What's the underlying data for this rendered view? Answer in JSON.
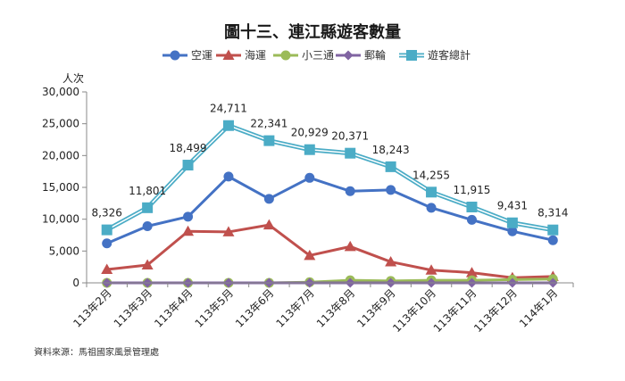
{
  "chart_data": {
    "type": "line",
    "title": "圖十三、連江縣遊客數量",
    "ylabel": "人次",
    "ylim": [
      0,
      30000
    ],
    "yticks": [
      0,
      5000,
      10000,
      15000,
      20000,
      25000,
      30000
    ],
    "ytick_labels": [
      "0",
      "5,000",
      "10,000",
      "15,000",
      "20,000",
      "25,000",
      "30,000"
    ],
    "grid": false,
    "legend_position": "top-center",
    "categories": [
      "113年2月",
      "113年3月",
      "113年4月",
      "113年5月",
      "113年6月",
      "113年7月",
      "113年8月",
      "113年9月",
      "113年10月",
      "113年11月",
      "113年12月",
      "114年1月"
    ],
    "series": [
      {
        "name": "空運",
        "color": "#4472C4",
        "marker": "circle",
        "values": [
          6200,
          8900,
          10400,
          16700,
          13200,
          16500,
          14400,
          14600,
          11800,
          9900,
          8100,
          6700
        ]
      },
      {
        "name": "海運",
        "color": "#C0504D",
        "marker": "triangle",
        "values": [
          2100,
          2800,
          8100,
          8000,
          9100,
          4300,
          5700,
          3300,
          2000,
          1600,
          800,
          1000
        ]
      },
      {
        "name": "小三通",
        "color": "#9BBB59",
        "marker": "circle",
        "values": [
          0,
          0,
          0,
          0,
          0,
          100,
          400,
          300,
          400,
          400,
          500,
          600
        ]
      },
      {
        "name": "郵輪",
        "color": "#8064A2",
        "marker": "diamond",
        "values": [
          0,
          0,
          0,
          0,
          0,
          0,
          0,
          0,
          0,
          0,
          0,
          0
        ]
      },
      {
        "name": "遊客總計",
        "color": "#4BACC6",
        "marker": "square",
        "double_line": true,
        "values": [
          8326,
          11801,
          18499,
          24711,
          22341,
          20929,
          20371,
          18243,
          14255,
          11915,
          9431,
          8314
        ],
        "data_labels": [
          "8,326",
          "11,801",
          "18,499",
          "24,711",
          "22,341",
          "20,929",
          "20,371",
          "18,243",
          "14,255",
          "11,915",
          "9,431",
          "8,314"
        ]
      }
    ]
  },
  "source": "資料來源：馬祖國家風景管理處"
}
